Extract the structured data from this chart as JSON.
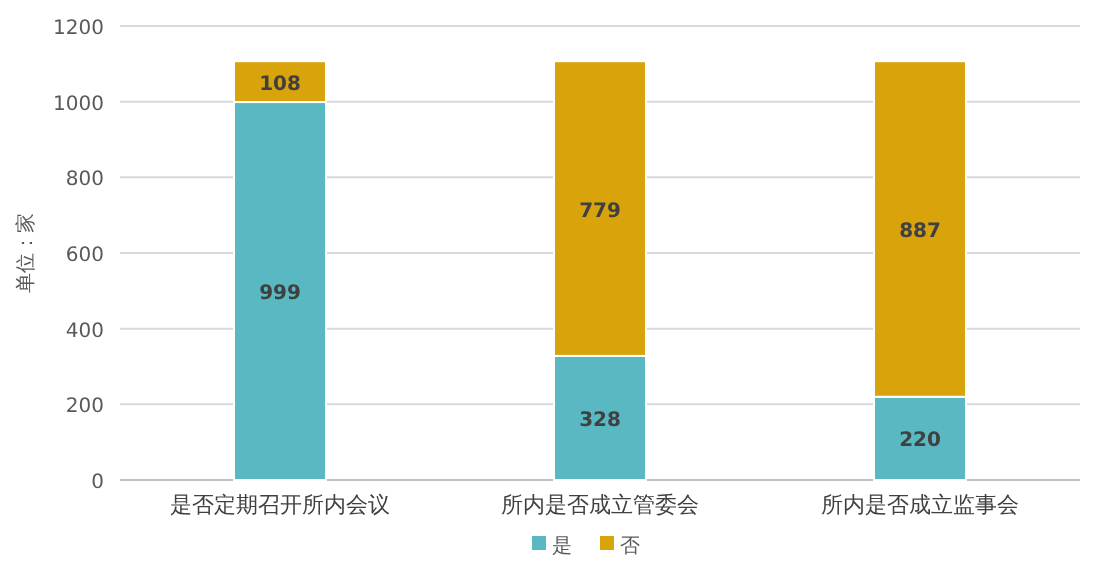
{
  "chart_data": {
    "type": "bar",
    "stacked": true,
    "ylabel": "单位：家",
    "categories": [
      "是否定期召开所内会议",
      "所内是否成立管委会",
      "所内是否成立监事会"
    ],
    "series": [
      {
        "name": "是",
        "color": "#5ab8c2",
        "values": [
          999,
          328,
          220
        ]
      },
      {
        "name": "否",
        "color": "#d9a30c",
        "values": [
          108,
          779,
          887
        ]
      }
    ],
    "ylim": [
      0,
      1200
    ],
    "yticks": [
      0,
      200,
      400,
      600,
      800,
      1000,
      1200
    ],
    "grid": "y",
    "legend": "bottom",
    "data_labels": true
  }
}
